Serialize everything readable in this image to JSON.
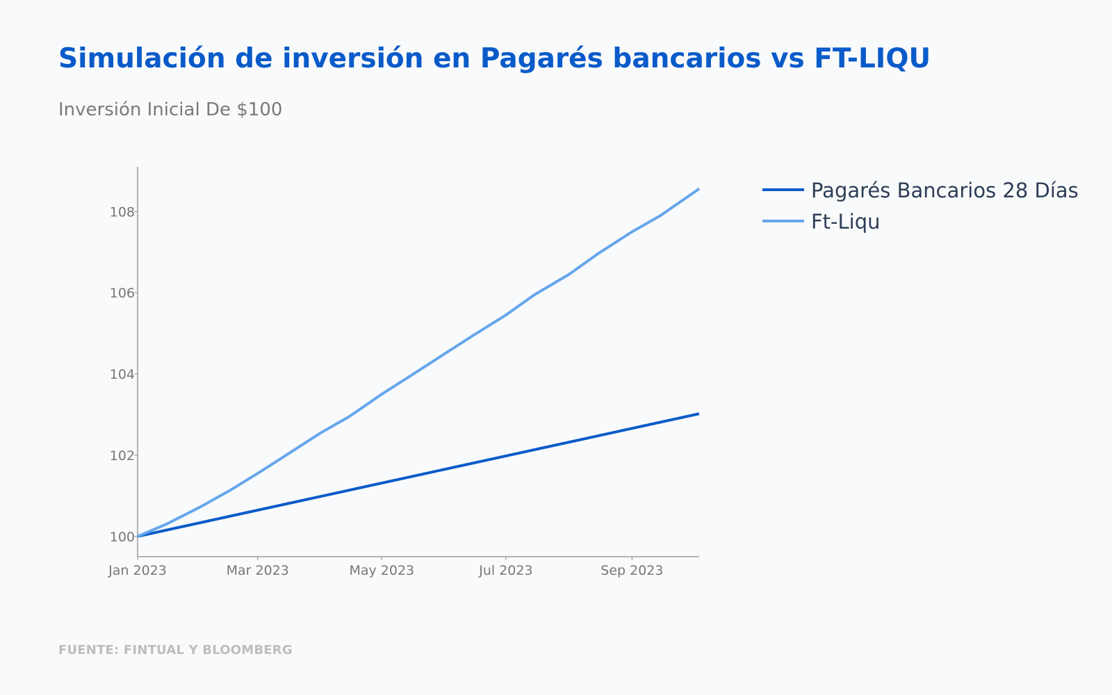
{
  "header": {
    "title": "Simulación de inversión en Pagarés bancarios vs FT-LIQU",
    "subtitle": "Inversión Inicial De $100"
  },
  "footer": {
    "source": "FUENTE: FINTUAL Y BLOOMBERG"
  },
  "colors": {
    "title": "#0a5bc9",
    "pagares": "#0a5bc9",
    "ftliqu": "#66a6ec",
    "background": "#f9fafb"
  },
  "chart_data": {
    "type": "line",
    "title": "Simulación de inversión en Pagarés bancarios vs FT-LIQU",
    "subtitle": "Inversión Inicial De $100",
    "xlabel": "",
    "ylabel": "",
    "x_tick_labels": [
      "Jan 2023",
      "Mar 2023",
      "May 2023",
      "Jul 2023",
      "Sep 2023"
    ],
    "y_ticks": [
      100,
      102,
      104,
      106,
      108
    ],
    "xlim": [
      "2023-01-01",
      "2023-10-04"
    ],
    "ylim": [
      99.5,
      109.1
    ],
    "grid": false,
    "legend_position": "right",
    "series": [
      {
        "name": "Pagarés Bancarios 28 Días",
        "color": "#0a5bc9",
        "x": [
          "2023-01-01",
          "2023-10-04"
        ],
        "values": [
          100.0,
          103.02
        ]
      },
      {
        "name": "Ft-Liqu",
        "color": "#66a6ec",
        "x": [
          "2023-01-01",
          "2023-01-15",
          "2023-02-01",
          "2023-02-15",
          "2023-03-01",
          "2023-03-15",
          "2023-04-01",
          "2023-04-15",
          "2023-05-01",
          "2023-05-15",
          "2023-06-01",
          "2023-06-15",
          "2023-07-01",
          "2023-07-15",
          "2023-08-01",
          "2023-08-15",
          "2023-09-01",
          "2023-09-15",
          "2023-10-04"
        ],
        "values": [
          100.0,
          100.3,
          100.73,
          101.12,
          101.55,
          102.0,
          102.55,
          102.95,
          103.5,
          103.95,
          104.5,
          104.95,
          105.45,
          105.95,
          106.45,
          106.95,
          107.5,
          107.9,
          108.56
        ]
      }
    ]
  }
}
